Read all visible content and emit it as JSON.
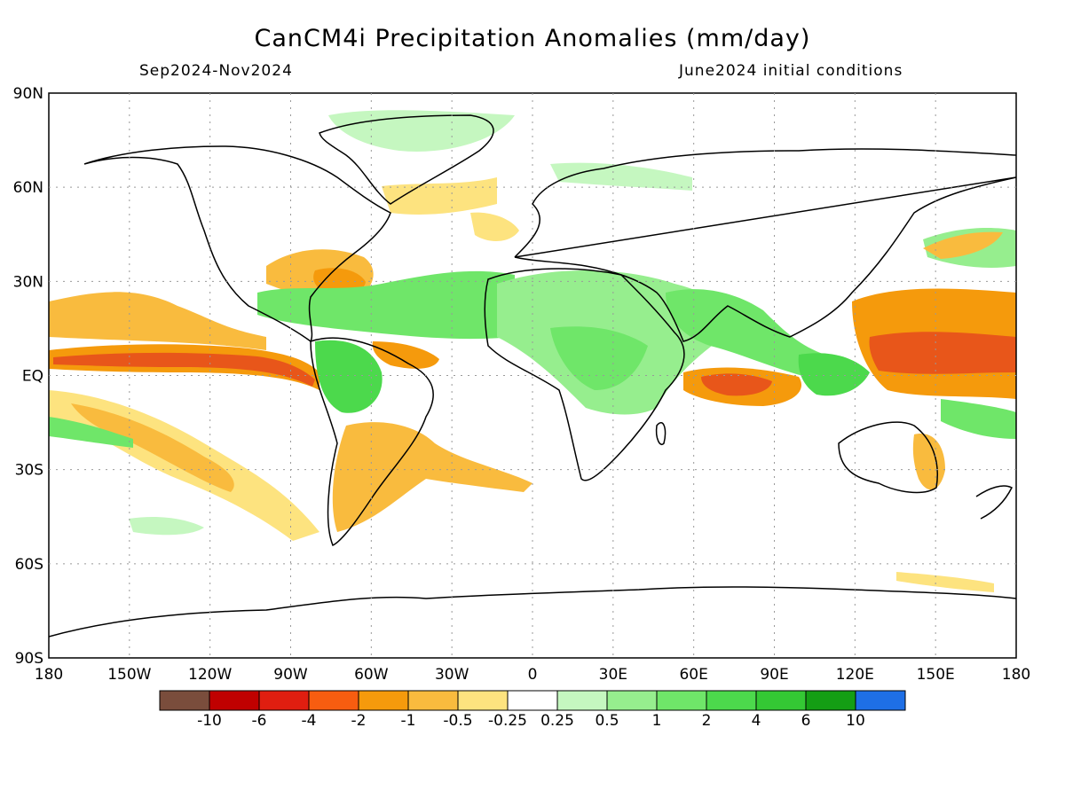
{
  "title": "CanCM4i Precipitation Anomalies (mm/day)",
  "subtitle_left": "Sep2024-Nov2024",
  "subtitle_right": "June2024 initial conditions",
  "axes": {
    "lat_ticks": [
      "90N",
      "60N",
      "30N",
      "EQ",
      "30S",
      "60S",
      "90S"
    ],
    "lon_ticks": [
      "180",
      "150W",
      "120W",
      "90W",
      "60W",
      "30W",
      "0",
      "30E",
      "60E",
      "90E",
      "120E",
      "150E",
      "180"
    ]
  },
  "colorbar": {
    "colors": [
      "#7a4d3c",
      "#c00000",
      "#e01e10",
      "#f75d10",
      "#f59a0c",
      "#f9bb3e",
      "#fde37f",
      "#ffffff",
      "#c5f7c0",
      "#96ee8e",
      "#6fe669",
      "#4cd94c",
      "#34c834",
      "#149e14",
      "#1e6fe6"
    ],
    "labels": [
      "-10",
      "-6",
      "-4",
      "-2",
      "-1",
      "-0.5",
      "-0.25",
      "0.25",
      "0.5",
      "1",
      "2",
      "4",
      "6",
      "10"
    ]
  },
  "legend_colors": {
    "dry_strong": "#e8561a",
    "dry": "#f8a830",
    "dry_light": "#fde37f",
    "wet_light": "#c5f7c0",
    "wet": "#6fe669",
    "wet_strong": "#34c834"
  }
}
